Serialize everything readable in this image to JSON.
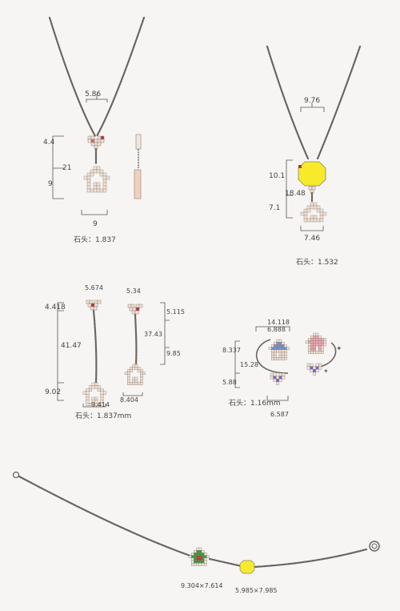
{
  "colors": {
    "paper": "#f6f5f3",
    "chain": "#6a6460",
    "pixel_outline": "#8a7f78",
    "pink_stone": "#d9666c",
    "red_stone": "#c23030",
    "yellow_stone": "#f6ea2a",
    "blue_stone": "#6f93d8",
    "violet_stone": "#6d67c9",
    "pink_house": "#f2a7b0",
    "green_stone": "#2f9b35",
    "ink": "#444444"
  },
  "icons": [
    "heart-icon",
    "house-icon",
    "balloon-icon",
    "clasp-icon"
  ],
  "necklace_1": {
    "dim_top": "5.86",
    "dim_left_top": "4.4",
    "dim_left_mid": "21",
    "dim_left_bottom": "9",
    "dim_bottom": "9",
    "stone_note": "石头：1.837"
  },
  "necklace_2": {
    "dim_top": "9.76",
    "dim_left_top": "10.1",
    "dim_left_total": "18.48",
    "dim_left_bottom": "7.1",
    "dim_bottom": "7.46",
    "stone_note": "石头：1.532"
  },
  "earrings_long": {
    "dim_left_top": "4.418",
    "dim_left_mid": "41.47",
    "dim_left_bottom": "9.02",
    "dim_top_1": "5.674",
    "dim_top_2": "5.34",
    "dim_right_top": "5.115",
    "dim_right_mid": "37.43",
    "dim_right_bottom": "9.85",
    "dim_bottom_1": "9.414",
    "dim_bottom_2": "8.404",
    "stone_note": "石头：1.837mm"
  },
  "earrings_hoop": {
    "dim_top": "14.118",
    "dim_top_inner": "6.888",
    "dim_left_top": "8.337",
    "dim_left_total": "15.28",
    "dim_left_bottom": "5.88",
    "dim_bottom": "6.587",
    "stone_note": "石头：1.16mm"
  },
  "bracelet": {
    "label_house": "9.304×7.614",
    "label_yellow": "5.985×7.985"
  }
}
